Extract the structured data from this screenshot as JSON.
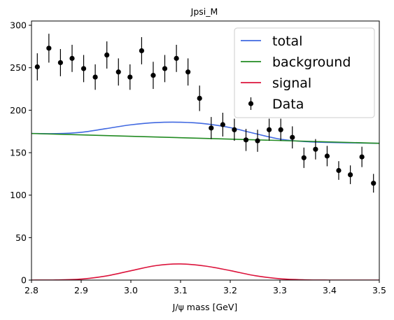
{
  "chart_data": {
    "type": "scatter",
    "title": "Jpsi_M",
    "xlabel": "J/ψ mass [GeV]",
    "ylabel": "",
    "xlim": [
      2.8,
      3.5
    ],
    "ylim": [
      0,
      305
    ],
    "x_ticks": [
      "2.8",
      "2.9",
      "3.0",
      "3.1",
      "3.2",
      "3.3",
      "3.4",
      "3.5"
    ],
    "y_ticks": [
      "0",
      "50",
      "100",
      "150",
      "200",
      "250",
      "300"
    ],
    "grid": false,
    "legend_position": "top-right",
    "series": [
      {
        "name": "total",
        "kind": "line",
        "color": "#4169e1",
        "x": [
          2.8,
          2.85,
          2.9,
          2.95,
          3.0,
          3.05,
          3.1,
          3.15,
          3.2,
          3.25,
          3.3,
          3.35,
          3.4,
          3.45,
          3.5
        ],
        "y": [
          172.6,
          172.4,
          174.0,
          178.3,
          182.8,
          185.4,
          185.8,
          184.0,
          179.5,
          172.5,
          166.0,
          163.0,
          162.0,
          161.5,
          161.0
        ]
      },
      {
        "name": "background",
        "kind": "line",
        "color": "#228b22",
        "x": [
          2.8,
          3.5
        ],
        "y": [
          172.6,
          161.0
        ]
      },
      {
        "name": "signal",
        "kind": "line",
        "color": "#dc143c",
        "x": [
          2.8,
          2.85,
          2.9,
          2.95,
          3.0,
          3.05,
          3.1,
          3.15,
          3.2,
          3.25,
          3.3,
          3.35,
          3.4,
          3.45,
          3.5
        ],
        "y": [
          0.0,
          0.2,
          1.2,
          4.8,
          11.0,
          17.0,
          19.0,
          16.5,
          11.2,
          5.2,
          1.6,
          0.3,
          0.0,
          0.0,
          0.0
        ]
      },
      {
        "name": "Data",
        "kind": "errorbar",
        "color": "#000000",
        "x": [
          2.8117,
          2.835,
          2.8583,
          2.8817,
          2.905,
          2.9283,
          2.9517,
          2.975,
          2.9983,
          3.0217,
          3.045,
          3.0683,
          3.0917,
          3.115,
          3.1383,
          3.1617,
          3.185,
          3.2083,
          3.2317,
          3.255,
          3.2783,
          3.3017,
          3.325,
          3.3483,
          3.3717,
          3.395,
          3.4183,
          3.4417,
          3.465,
          3.4883
        ],
        "y": [
          251,
          273,
          256,
          261,
          249,
          239,
          265,
          245,
          239,
          270,
          241,
          249,
          261,
          245,
          214,
          179,
          183,
          177,
          165,
          164,
          177,
          177,
          168,
          144,
          154,
          146,
          129,
          124,
          145,
          114
        ],
        "yerr": [
          16,
          17,
          16,
          16,
          16,
          15,
          16,
          16,
          15,
          16,
          16,
          16,
          16,
          16,
          15,
          13,
          14,
          13,
          13,
          13,
          13,
          13,
          13,
          12,
          12,
          12,
          11,
          11,
          12,
          11
        ]
      }
    ]
  }
}
